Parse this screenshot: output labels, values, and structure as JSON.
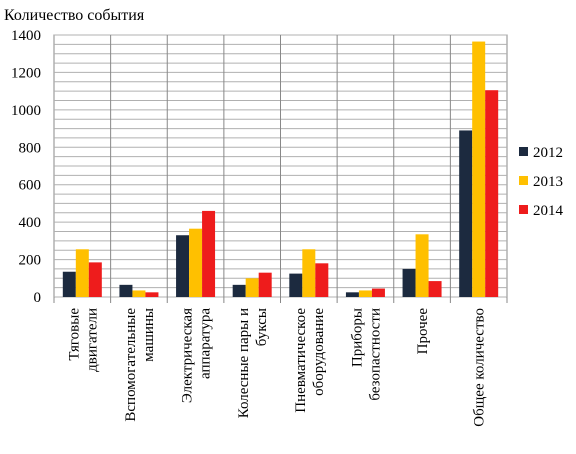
{
  "chart_data": {
    "type": "bar",
    "ylabel": "Количество события",
    "ylim": [
      0,
      1400
    ],
    "yticks": [
      0,
      200,
      400,
      600,
      800,
      1000,
      1200,
      1400
    ],
    "grid": true,
    "legend_position": "right",
    "categories": [
      [
        "Тяговые",
        "двигатели"
      ],
      [
        "Вспомогательные",
        "машины"
      ],
      [
        "Электрическая",
        "аппаратура"
      ],
      [
        "Колесные пары и",
        "буксы"
      ],
      [
        "Пневматическое",
        "оборудование"
      ],
      [
        "Приборы",
        "безопастности"
      ],
      [
        "Прочее"
      ],
      [
        "Общее количество"
      ]
    ],
    "series": [
      {
        "name": "2012",
        "color": "#1c2a3f",
        "values": [
          135,
          65,
          330,
          65,
          125,
          25,
          150,
          890
        ]
      },
      {
        "name": "2013",
        "color": "#ffc000",
        "values": [
          255,
          35,
          365,
          100,
          255,
          35,
          335,
          1365
        ]
      },
      {
        "name": "2014",
        "color": "#ee1c1c",
        "values": [
          185,
          25,
          460,
          130,
          180,
          45,
          85,
          1105
        ]
      }
    ]
  }
}
